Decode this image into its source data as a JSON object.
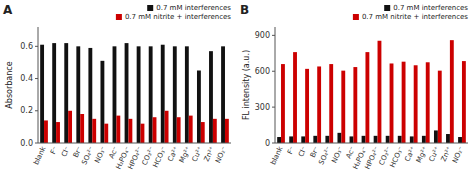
{
  "chart_data": [
    {
      "type": "bar",
      "title": "A",
      "categories": [
        "blank",
        "F⁻",
        "Cl⁻",
        "Br⁻",
        "SO₄²⁻",
        "NO₃⁻",
        "Ac⁻",
        "H₂PO₄⁻",
        "HPO₄²⁻",
        "CO₃²⁻",
        "HCO₃⁻",
        "Ca²⁺",
        "Mg²⁺",
        "Cu²⁺",
        "Zn²⁺",
        "NO₂⁻"
      ],
      "series": [
        {
          "name": "0.7 mM interferences",
          "color": "#111111",
          "values": [
            0.61,
            0.62,
            0.62,
            0.6,
            0.59,
            0.51,
            0.6,
            0.62,
            0.6,
            0.6,
            0.61,
            0.6,
            0.6,
            0.45,
            0.57,
            0.6
          ]
        },
        {
          "name": "0.7 mM nitrite + interferences",
          "color": "#cc0000",
          "values": [
            0.14,
            0.13,
            0.2,
            0.18,
            0.15,
            0.12,
            0.17,
            0.15,
            0.12,
            0.16,
            0.2,
            0.16,
            0.17,
            0.13,
            0.15,
            0.15
          ]
        }
      ],
      "ylabel": "Absorbance",
      "ylim": [
        0.0,
        0.72
      ],
      "yticks": [
        {
          "value": 0.0,
          "label": "0.0"
        },
        0.2,
        0.4,
        0.6
      ],
      "legend": "upper right",
      "grid": false
    },
    {
      "type": "bar",
      "title": "B",
      "categories": [
        "blank",
        "F⁻",
        "Cl⁻",
        "Br⁻",
        "SO₄²⁻",
        "NO₃⁻",
        "Ac⁻",
        "H₂PO₄⁻",
        "HPO₄²⁻",
        "CO₃²⁻",
        "HCO₃⁻",
        "Ca²⁺",
        "Mg²⁺",
        "Cu²⁺",
        "Zn²⁺",
        "NO₂⁻"
      ],
      "series": [
        {
          "name": "0.7 mM interferences",
          "color": "#111111",
          "values": [
            50,
            55,
            55,
            60,
            60,
            85,
            55,
            60,
            60,
            60,
            60,
            55,
            60,
            105,
            75,
            50
          ]
        },
        {
          "name": "0.7 mM nitrite + interferences",
          "color": "#cc0000",
          "values": [
            660,
            760,
            620,
            640,
            660,
            605,
            635,
            760,
            855,
            665,
            680,
            650,
            675,
            605,
            860,
            685
          ]
        }
      ],
      "ylabel": "FL intensity (a.u.)",
      "ylim": [
        0,
        970
      ],
      "yticks": [
        0,
        300,
        600,
        900
      ],
      "legend": "upper right",
      "grid": false
    }
  ]
}
